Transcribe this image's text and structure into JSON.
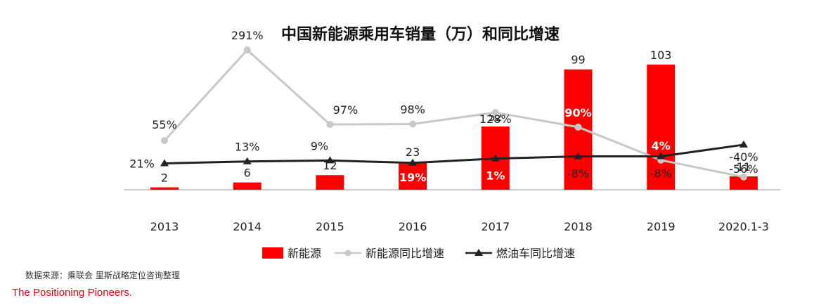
{
  "chart_data": {
    "type": "bar+line",
    "title": "中国新能源乘用车销量（万）和同比增速",
    "categories": [
      "2013",
      "2014",
      "2015",
      "2016",
      "2017",
      "2018",
      "2019",
      "2020.1-3"
    ],
    "bar_series": {
      "name": "新能源",
      "values": [
        2,
        6,
        12,
        23,
        52,
        99,
        103,
        11
      ],
      "labels": [
        "2",
        "6",
        "12",
        "23",
        "52",
        "99",
        "103",
        "11"
      ],
      "color": "#ff0000"
    },
    "line_series": [
      {
        "name": "新能源同比增速",
        "values": [
          55,
          291,
          97,
          98,
          128,
          90,
          4,
          -40
        ],
        "labels": [
          "55%",
          "291%",
          "97%",
          "98%",
          "128%",
          "90%",
          "4%",
          "-40%"
        ],
        "color": "#c8c8c8",
        "marker": "circle"
      },
      {
        "name": "燃油车同比增速",
        "values": [
          21,
          13,
          9,
          19,
          1,
          -8,
          -8,
          -56
        ],
        "labels": [
          "21%",
          "13%",
          "9%",
          "19%",
          "1%",
          "-8%",
          "-8%",
          "-56%"
        ],
        "color": "#222222",
        "marker": "triangle"
      }
    ],
    "legend_position": "bottom",
    "grid": false
  },
  "source": "数据来源：乘联会 里斯战略定位咨询整理",
  "tagline": "The Positioning Pioneers."
}
